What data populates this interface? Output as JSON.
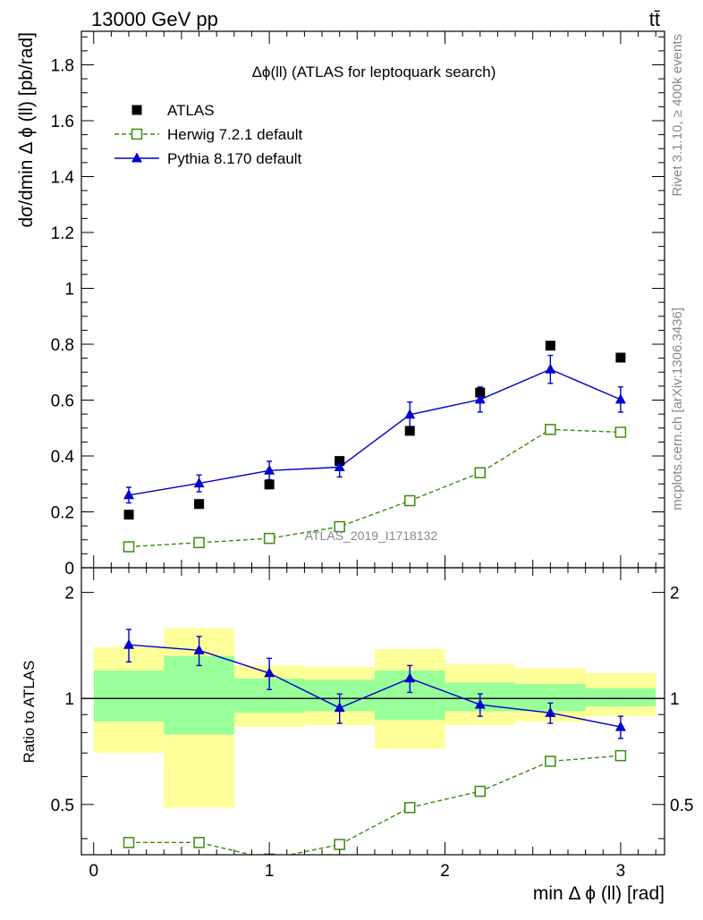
{
  "header": {
    "energy_label": "13000 GeV pp",
    "process_label": "tt̄"
  },
  "side_labels": {
    "rivet": "Rivet 3.1.10, ≥ 400k events",
    "mcplots": "mcplots.cern.ch [arXiv:1306.3436]"
  },
  "chart_data": [
    {
      "type": "scatter",
      "title": "Δϕ(ll) (ATLAS for leptoquark search)",
      "xlabel": "min Δ ϕ (ll) [rad]",
      "ylabel": "dσ/dmin Δ ϕ (ll) [pb/rad]",
      "watermark": "ATLAS_2019_I1718132",
      "xlim": [
        -0.07,
        3.25
      ],
      "ylim": [
        0,
        1.92
      ],
      "x_ticks": [
        0,
        1,
        2,
        3
      ],
      "y_ticks": [
        0.2,
        0.4,
        0.6,
        0.8,
        1,
        1.2,
        1.4,
        1.6,
        1.8
      ],
      "y_tick_labels": [
        "0.2",
        "0.4",
        "0.6",
        "0.8",
        "1",
        "1.2",
        "1.4",
        "1.6",
        "1.8"
      ],
      "series": [
        {
          "name": "ATLAS",
          "marker": "filled-square",
          "color": "#000000",
          "x": [
            0.2,
            0.6,
            1.0,
            1.4,
            1.8,
            2.2,
            2.6,
            3.0
          ],
          "y": [
            0.19,
            0.228,
            0.298,
            0.382,
            0.49,
            0.627,
            0.795,
            0.752
          ]
        },
        {
          "name": "Herwig 7.2.1 default",
          "marker": "open-square",
          "line": "dashed",
          "color": "#3b8c0c",
          "x": [
            0.2,
            0.6,
            1.0,
            1.4,
            1.8,
            2.2,
            2.6,
            3.0
          ],
          "y": [
            0.075,
            0.09,
            0.105,
            0.147,
            0.24,
            0.34,
            0.495,
            0.485
          ]
        },
        {
          "name": "Pythia 8.170 default",
          "marker": "filled-triangle",
          "line": "solid",
          "color": "#0000cc",
          "x": [
            0.2,
            0.6,
            1.0,
            1.4,
            1.8,
            2.2,
            2.6,
            3.0
          ],
          "y": [
            0.26,
            0.302,
            0.348,
            0.36,
            0.548,
            0.602,
            0.71,
            0.602
          ],
          "yerr": [
            0.028,
            0.03,
            0.033,
            0.035,
            0.045,
            0.045,
            0.05,
            0.045
          ]
        }
      ],
      "legend_placement": "top-left"
    },
    {
      "type": "scatter",
      "ylabel": "Ratio to ATLAS",
      "xlim": [
        -0.07,
        3.25
      ],
      "ylim": [
        0.36,
        2.35
      ],
      "y_scale": "log",
      "x_ticks": [
        0,
        1,
        2,
        3
      ],
      "y_ticks": [
        0.5,
        1,
        2
      ],
      "y_tick_labels": [
        "0.5",
        "1",
        "2"
      ],
      "reference_line": 1,
      "bands": [
        {
          "x": [
            0,
            0.4
          ],
          "yellow": [
            0.7,
            1.4
          ],
          "green": [
            0.86,
            1.2
          ]
        },
        {
          "x": [
            0.4,
            0.8
          ],
          "yellow": [
            0.49,
            1.58
          ],
          "green": [
            0.79,
            1.32
          ]
        },
        {
          "x": [
            0.8,
            1.2
          ],
          "yellow": [
            0.83,
            1.24
          ],
          "green": [
            0.91,
            1.14
          ]
        },
        {
          "x": [
            1.2,
            1.6
          ],
          "yellow": [
            0.84,
            1.23
          ],
          "green": [
            0.92,
            1.13
          ]
        },
        {
          "x": [
            1.6,
            2.0
          ],
          "yellow": [
            0.72,
            1.38
          ],
          "green": [
            0.87,
            1.2
          ]
        },
        {
          "x": [
            2.0,
            2.4
          ],
          "yellow": [
            0.84,
            1.25
          ],
          "green": [
            0.92,
            1.11
          ]
        },
        {
          "x": [
            2.4,
            2.8
          ],
          "yellow": [
            0.86,
            1.22
          ],
          "green": [
            0.92,
            1.1
          ]
        },
        {
          "x": [
            2.8,
            3.2
          ],
          "yellow": [
            0.89,
            1.18
          ],
          "green": [
            0.95,
            1.07
          ]
        }
      ],
      "series": [
        {
          "name": "Herwig 7.2.1 default",
          "marker": "open-square",
          "line": "dashed",
          "color": "#3b8c0c",
          "x": [
            0.2,
            0.6,
            1.0,
            1.4,
            1.8,
            2.2,
            2.6,
            3.0
          ],
          "y": [
            0.39,
            0.39,
            0.35,
            0.385,
            0.49,
            0.545,
            0.663,
            0.688
          ]
        },
        {
          "name": "Pythia 8.170 default",
          "marker": "filled-triangle",
          "line": "solid",
          "color": "#0000cc",
          "x": [
            0.2,
            0.6,
            1.0,
            1.4,
            1.8,
            2.2,
            2.6,
            3.0
          ],
          "y": [
            1.42,
            1.37,
            1.18,
            0.94,
            1.14,
            0.96,
            0.91,
            0.83
          ],
          "yerr": [
            0.15,
            0.13,
            0.12,
            0.09,
            0.1,
            0.07,
            0.06,
            0.06
          ]
        }
      ]
    }
  ]
}
